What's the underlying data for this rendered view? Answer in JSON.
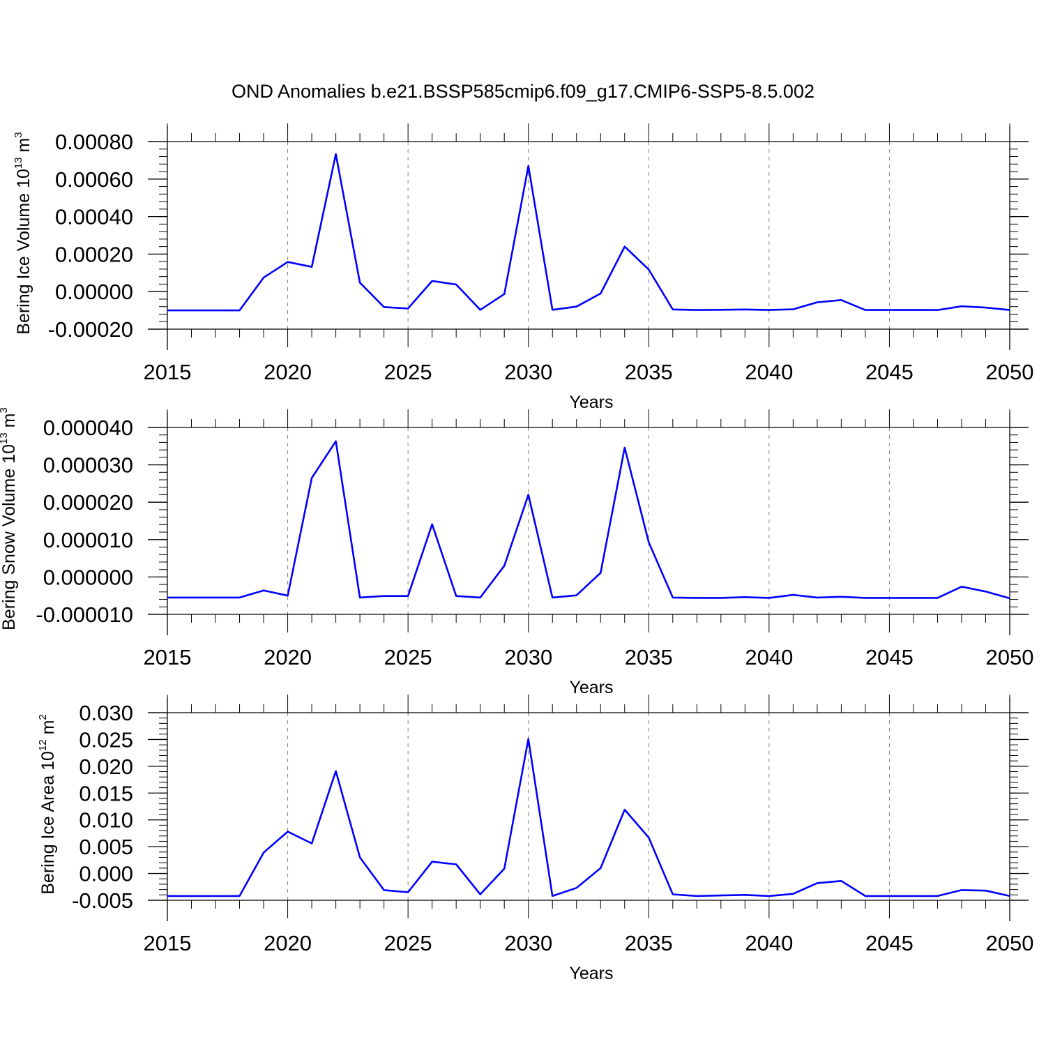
{
  "figure": {
    "title": "OND Anomalies b.e21.BSSP585cmip6.f09_g17.CMIP6-SSP5-8.5.002"
  },
  "colors": {
    "line": "#0000ff",
    "axis": "#000000",
    "grid": "#808080"
  },
  "chart_data": [
    {
      "type": "line",
      "xlabel": "Years",
      "ylabel": {
        "text": "Bering Ice Volume 10",
        "sup1": "13",
        "unit": " m",
        "sup2": "3"
      },
      "xlim": [
        2015,
        2050
      ],
      "ylim": [
        -0.0002,
        0.0008
      ],
      "x_ticks": [
        "2015",
        "2020",
        "2025",
        "2030",
        "2035",
        "2040",
        "2045",
        "2050"
      ],
      "y_ticks": [
        {
          "value": -0.0002,
          "label": "-0.00020"
        },
        {
          "value": 0.0,
          "label": "0.00000"
        },
        {
          "value": 0.0002,
          "label": "0.00020"
        },
        {
          "value": 0.0004,
          "label": "0.00040"
        },
        {
          "value": 0.0006,
          "label": "0.00060"
        },
        {
          "value": 0.0008,
          "label": "0.00080"
        }
      ],
      "y_minor_step": 4e-05,
      "grid": "vertical dashed at major x ticks",
      "series": [
        {
          "x": [
            2015,
            2016,
            2017,
            2018,
            2019,
            2020,
            2021,
            2022,
            2023,
            2024,
            2025,
            2026,
            2027,
            2028,
            2029,
            2030,
            2031,
            2032,
            2033,
            2034,
            2035,
            2036,
            2037,
            2038,
            2039,
            2040,
            2041,
            2042,
            2043,
            2044,
            2045,
            2046,
            2047,
            2048,
            2049,
            2050
          ],
          "values": [
            -0.0001,
            -0.0001,
            -0.0001,
            -0.0001,
            7.5e-05,
            0.000158,
            0.000132,
            0.000733,
            4.8e-05,
            -8.2e-05,
            -9e-05,
            5.7e-05,
            3.8e-05,
            -9.7e-05,
            -1.3e-05,
            0.00067,
            -9.7e-05,
            -8e-05,
            -1e-05,
            0.00024,
            0.000118,
            -9.5e-05,
            -9.8e-05,
            -9.7e-05,
            -9.5e-05,
            -9.8e-05,
            -9.4e-05,
            -5.7e-05,
            -4.5e-05,
            -9.8e-05,
            -9.8e-05,
            -9.8e-05,
            -9.8e-05,
            -7.8e-05,
            -8.5e-05,
            -9.8e-05
          ]
        }
      ]
    },
    {
      "type": "line",
      "xlabel": "Years",
      "ylabel": {
        "text": "Bering Snow Volume 10",
        "sup1": "13",
        "unit": " m",
        "sup2": "3"
      },
      "xlim": [
        2015,
        2050
      ],
      "ylim": [
        -1e-05,
        4e-05
      ],
      "x_ticks": [
        "2015",
        "2020",
        "2025",
        "2030",
        "2035",
        "2040",
        "2045",
        "2050"
      ],
      "y_ticks": [
        {
          "value": -1e-05,
          "label": "-0.000010"
        },
        {
          "value": 0.0,
          "label": "0.000000"
        },
        {
          "value": 1e-05,
          "label": "0.000010"
        },
        {
          "value": 2e-05,
          "label": "0.000020"
        },
        {
          "value": 3e-05,
          "label": "0.000030"
        },
        {
          "value": 4e-05,
          "label": "0.000040"
        }
      ],
      "y_minor_step": 2e-06,
      "grid": "vertical dashed at major x ticks",
      "series": [
        {
          "x": [
            2015,
            2016,
            2017,
            2018,
            2019,
            2020,
            2021,
            2022,
            2023,
            2024,
            2025,
            2026,
            2027,
            2028,
            2029,
            2030,
            2031,
            2032,
            2033,
            2034,
            2035,
            2036,
            2037,
            2038,
            2039,
            2040,
            2041,
            2042,
            2043,
            2044,
            2045,
            2046,
            2047,
            2048,
            2049,
            2050
          ],
          "values": [
            -5.5e-06,
            -5.5e-06,
            -5.5e-06,
            -5.5e-06,
            -3.6e-06,
            -5e-06,
            2.65e-05,
            3.63e-05,
            -5.5e-06,
            -5.1e-06,
            -5.1e-06,
            1.41e-05,
            -5.1e-06,
            -5.5e-06,
            3e-06,
            2.2e-05,
            -5.5e-06,
            -4.9e-06,
            1.1e-06,
            3.46e-05,
            9.3e-06,
            -5.5e-06,
            -5.6e-06,
            -5.6e-06,
            -5.4e-06,
            -5.6e-06,
            -4.8e-06,
            -5.5e-06,
            -5.3e-06,
            -5.6e-06,
            -5.6e-06,
            -5.6e-06,
            -5.6e-06,
            -2.6e-06,
            -3.9e-06,
            -5.7e-06
          ]
        }
      ]
    },
    {
      "type": "line",
      "xlabel": "Years",
      "ylabel": {
        "text": "Bering Ice Area 10",
        "sup1": "12",
        "unit": " m",
        "sup2": "2"
      },
      "xlim": [
        2015,
        2050
      ],
      "ylim": [
        -0.005,
        0.03
      ],
      "x_ticks": [
        "2015",
        "2020",
        "2025",
        "2030",
        "2035",
        "2040",
        "2045",
        "2050"
      ],
      "y_ticks": [
        {
          "value": -0.005,
          "label": "-0.005"
        },
        {
          "value": 0.0,
          "label": "0.000"
        },
        {
          "value": 0.005,
          "label": "0.005"
        },
        {
          "value": 0.01,
          "label": "0.010"
        },
        {
          "value": 0.015,
          "label": "0.015"
        },
        {
          "value": 0.02,
          "label": "0.020"
        },
        {
          "value": 0.025,
          "label": "0.025"
        },
        {
          "value": 0.03,
          "label": "0.030"
        }
      ],
      "y_minor_step": 0.001,
      "grid": "vertical dashed at major x ticks",
      "series": [
        {
          "x": [
            2015,
            2016,
            2017,
            2018,
            2019,
            2020,
            2021,
            2022,
            2023,
            2024,
            2025,
            2026,
            2027,
            2028,
            2029,
            2030,
            2031,
            2032,
            2033,
            2034,
            2035,
            2036,
            2037,
            2038,
            2039,
            2040,
            2041,
            2042,
            2043,
            2044,
            2045,
            2046,
            2047,
            2048,
            2049,
            2050
          ],
          "values": [
            -0.0042,
            -0.0042,
            -0.0042,
            -0.0042,
            0.0039,
            0.0078,
            0.0056,
            0.0191,
            0.003,
            -0.0031,
            -0.0035,
            0.0022,
            0.0017,
            -0.0039,
            0.0009,
            0.0251,
            -0.0042,
            -0.0027,
            0.001,
            0.0119,
            0.0067,
            -0.0039,
            -0.0042,
            -0.0041,
            -0.004,
            -0.0042,
            -0.0038,
            -0.0018,
            -0.0014,
            -0.0042,
            -0.0042,
            -0.0042,
            -0.0042,
            -0.0031,
            -0.0032,
            -0.0042
          ]
        }
      ]
    }
  ]
}
